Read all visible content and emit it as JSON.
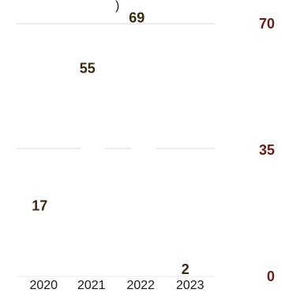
{
  "chart_data": {
    "type": "bar",
    "categories": [
      "2020",
      "2021",
      "2022",
      "2023"
    ],
    "values": [
      17,
      55,
      69,
      2
    ],
    "value_labels": [
      "17",
      "55",
      "69",
      "2"
    ],
    "ylim": [
      0,
      70
    ],
    "yticks": [
      {
        "value": 0,
        "label": "0"
      },
      {
        "value": 35,
        "label": "35"
      },
      {
        "value": 70,
        "label": "70"
      }
    ],
    "axis_position": "right",
    "grid": true,
    "bars_visible": false,
    "colors": {
      "tick_label": "#6b1a16",
      "data_label": "#3b2a10",
      "category_label": "#1a1a1a",
      "grid": "#e6e6e6",
      "background": "#ffffff"
    }
  }
}
